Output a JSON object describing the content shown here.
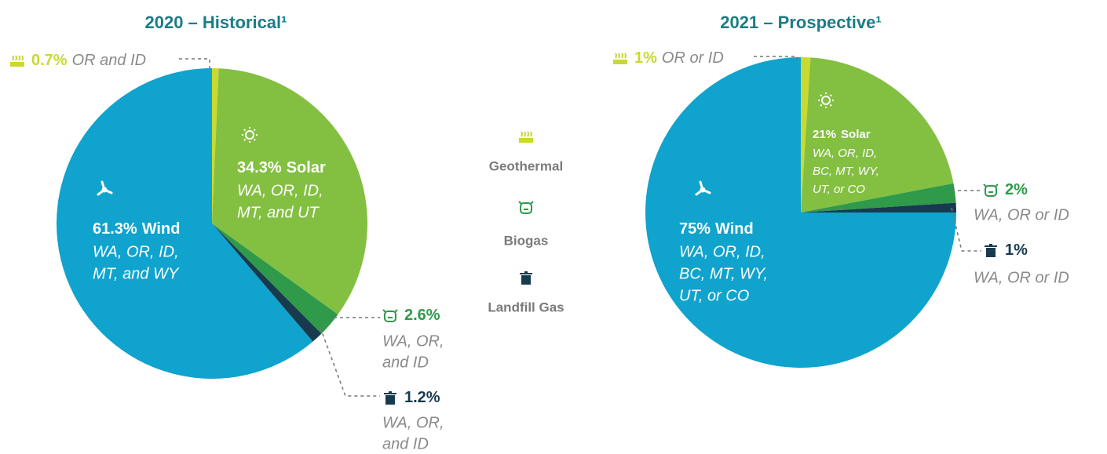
{
  "chart_data": [
    {
      "type": "pie",
      "title": "2020 – Historical¹",
      "categories": [
        "Geothermal",
        "Solar",
        "Biogas",
        "Landfill Gas",
        "Wind"
      ],
      "values": [
        0.7,
        34.3,
        2.6,
        1.2,
        61.3
      ],
      "value_labels": [
        "0.7%",
        "34.3%",
        "2.6%",
        "1.2%",
        "61.3%"
      ],
      "regions": [
        [
          "OR and ID"
        ],
        [
          "WA, OR, ID,",
          "MT, and UT"
        ],
        [
          "WA, OR,",
          "and ID"
        ],
        [
          "WA, OR,",
          "and ID"
        ],
        [
          "WA, OR, ID,",
          "MT, and WY"
        ]
      ],
      "colors": [
        "#c9d92f",
        "#83bf41",
        "#2e9a4a",
        "#183a4f",
        "#0fa3cd"
      ]
    },
    {
      "type": "pie",
      "title": "2021 – Prospective¹",
      "categories": [
        null,
        "Solar",
        null,
        null,
        "Wind"
      ],
      "values": [
        1,
        21,
        2,
        1,
        75
      ],
      "value_labels": [
        "1%",
        "21%",
        "2%",
        "1%",
        "75%"
      ],
      "regions": [
        [
          "OR or ID"
        ],
        [
          "WA, OR, ID,",
          "BC, MT, WY,",
          "UT, or CO"
        ],
        [
          "WA, OR or ID"
        ],
        [
          "WA, OR or ID"
        ],
        [
          "WA, OR, ID,",
          "BC, MT, WY,",
          "UT, or CO"
        ]
      ],
      "colors": [
        "#c9d92f",
        "#83bf41",
        "#2e9a4a",
        "#183a4f",
        "#0fa3cd"
      ]
    }
  ]
}
